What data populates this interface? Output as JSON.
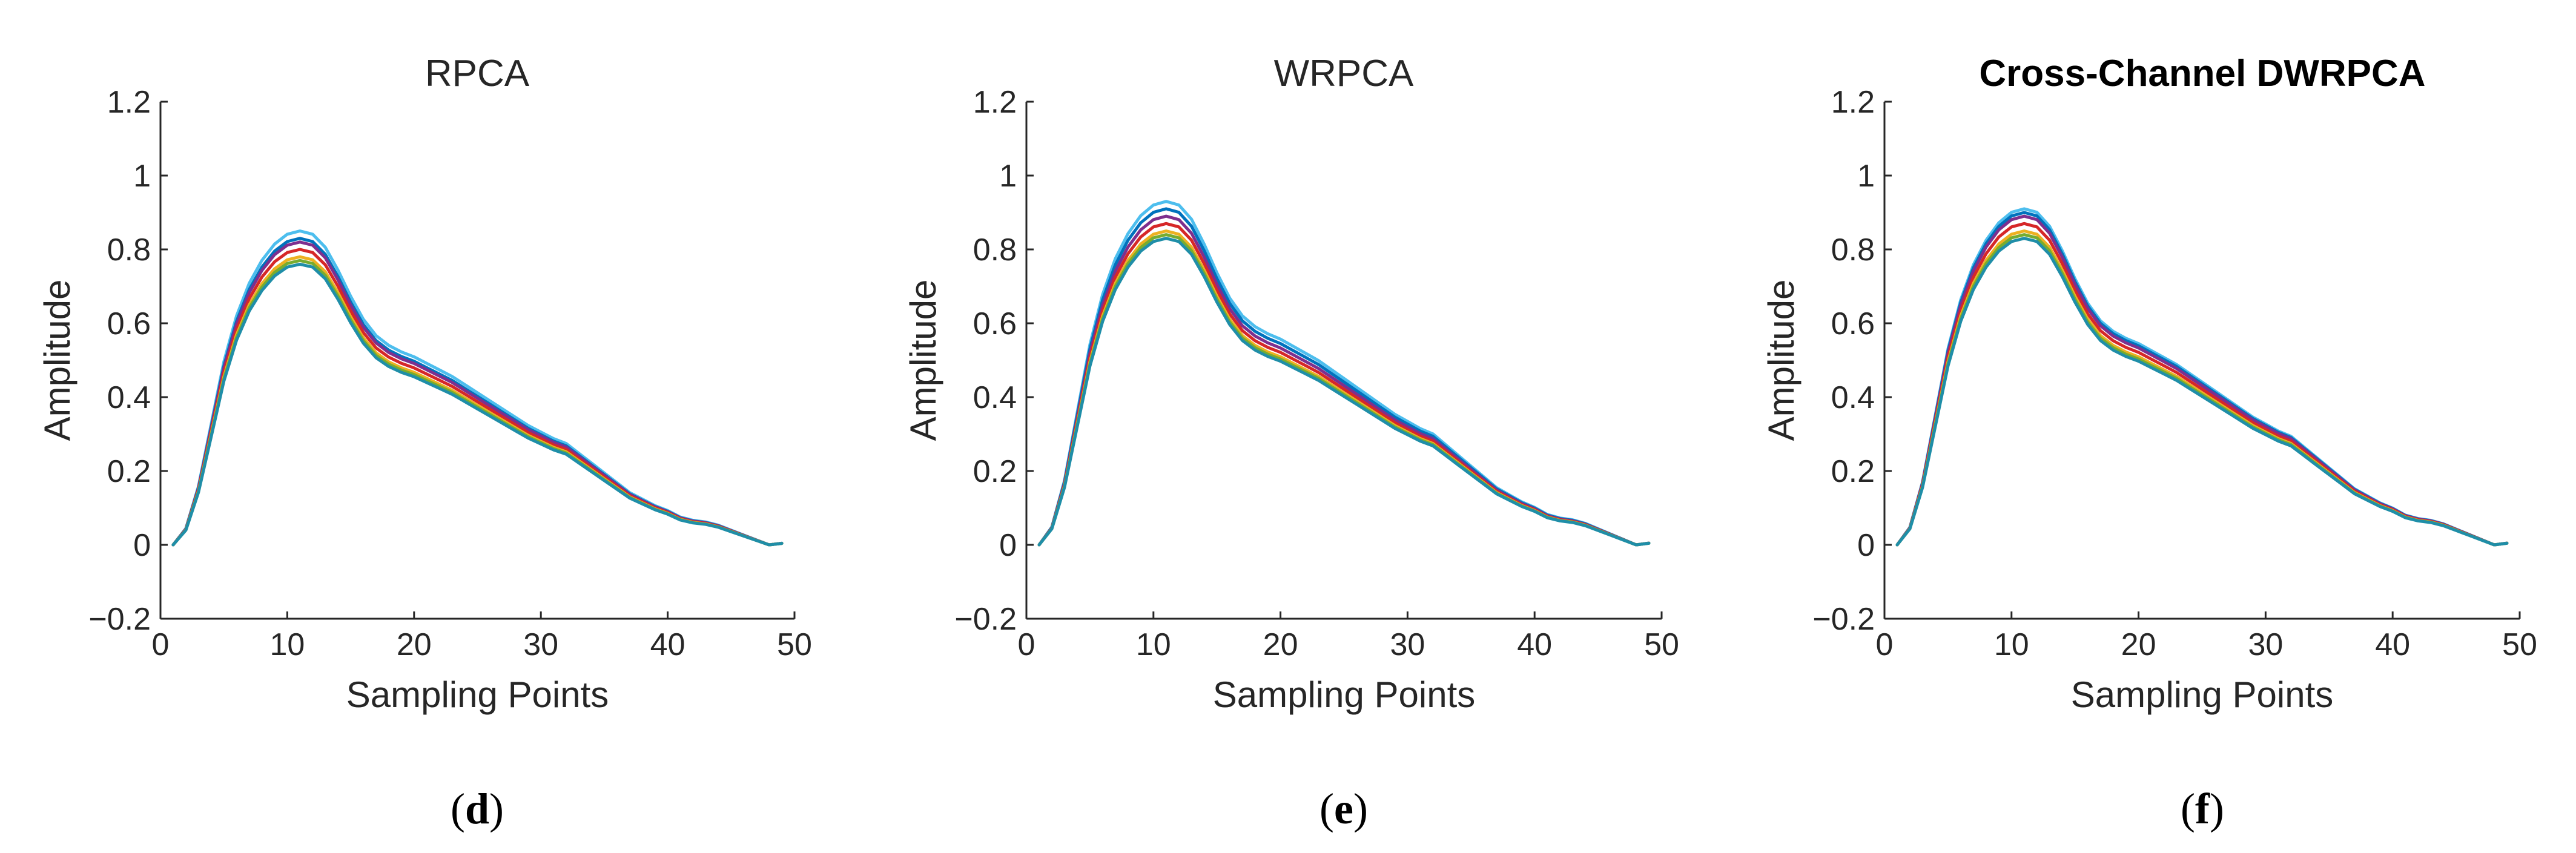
{
  "chart_data": [
    {
      "type": "line",
      "title": "RPCA",
      "title_bold": false,
      "caption": "d",
      "xlabel": "Sampling Points",
      "ylabel": "Amplitude",
      "xlim": [
        0,
        50
      ],
      "ylim": [
        -0.2,
        1.2
      ],
      "xticks": [
        0,
        10,
        20,
        30,
        40,
        50
      ],
      "yticks": [
        -0.2,
        0,
        0.2,
        0.4,
        0.6,
        0.8,
        1,
        1.2
      ],
      "x": [
        1,
        2,
        3,
        4,
        5,
        6,
        7,
        8,
        9,
        10,
        11,
        12,
        13,
        14,
        15,
        16,
        17,
        18,
        19,
        20,
        21,
        22,
        23,
        24,
        25,
        26,
        27,
        28,
        29,
        30,
        31,
        32,
        33,
        34,
        35,
        36,
        37,
        38,
        39,
        40,
        41,
        42,
        43,
        44,
        45,
        46,
        47,
        48,
        49
      ],
      "series": [
        {
          "name": "light-blue",
          "color": "#4dbeee",
          "peak": 0.85
        },
        {
          "name": "blue",
          "color": "#0072bd",
          "peak": 0.83
        },
        {
          "name": "purple",
          "color": "#7e2f8e",
          "peak": 0.82
        },
        {
          "name": "red",
          "color": "#d62728",
          "peak": 0.8
        },
        {
          "name": "yellow",
          "color": "#edb120",
          "peak": 0.78
        },
        {
          "name": "green",
          "color": "#77ac30",
          "peak": 0.77
        },
        {
          "name": "teal",
          "color": "#1f8ea8",
          "peak": 0.76
        }
      ]
    },
    {
      "type": "line",
      "title": "WRPCA",
      "title_bold": false,
      "caption": "e",
      "xlabel": "Sampling Points",
      "ylabel": "Amplitude",
      "xlim": [
        0,
        50
      ],
      "ylim": [
        -0.2,
        1.2
      ],
      "xticks": [
        0,
        10,
        20,
        30,
        40,
        50
      ],
      "yticks": [
        -0.2,
        0,
        0.2,
        0.4,
        0.6,
        0.8,
        1,
        1.2
      ],
      "x": [
        1,
        2,
        3,
        4,
        5,
        6,
        7,
        8,
        9,
        10,
        11,
        12,
        13,
        14,
        15,
        16,
        17,
        18,
        19,
        20,
        21,
        22,
        23,
        24,
        25,
        26,
        27,
        28,
        29,
        30,
        31,
        32,
        33,
        34,
        35,
        36,
        37,
        38,
        39,
        40,
        41,
        42,
        43,
        44,
        45,
        46,
        47,
        48,
        49
      ],
      "series": [
        {
          "name": "light-blue",
          "color": "#4dbeee",
          "peak": 0.93
        },
        {
          "name": "blue",
          "color": "#0072bd",
          "peak": 0.91
        },
        {
          "name": "purple",
          "color": "#7e2f8e",
          "peak": 0.89
        },
        {
          "name": "red",
          "color": "#d62728",
          "peak": 0.87
        },
        {
          "name": "yellow",
          "color": "#edb120",
          "peak": 0.85
        },
        {
          "name": "green",
          "color": "#77ac30",
          "peak": 0.84
        },
        {
          "name": "teal",
          "color": "#1f8ea8",
          "peak": 0.83
        }
      ]
    },
    {
      "type": "line",
      "title": "Cross-Channel DWRPCA",
      "title_bold": true,
      "caption": "f",
      "xlabel": "Sampling Points",
      "ylabel": "Amplitude",
      "xlim": [
        0,
        50
      ],
      "ylim": [
        -0.2,
        1.2
      ],
      "xticks": [
        0,
        10,
        20,
        30,
        40,
        50
      ],
      "yticks": [
        -0.2,
        0,
        0.2,
        0.4,
        0.6,
        0.8,
        1,
        1.2
      ],
      "x": [
        1,
        2,
        3,
        4,
        5,
        6,
        7,
        8,
        9,
        10,
        11,
        12,
        13,
        14,
        15,
        16,
        17,
        18,
        19,
        20,
        21,
        22,
        23,
        24,
        25,
        26,
        27,
        28,
        29,
        30,
        31,
        32,
        33,
        34,
        35,
        36,
        37,
        38,
        39,
        40,
        41,
        42,
        43,
        44,
        45,
        46,
        47,
        48,
        49
      ],
      "series": [
        {
          "name": "light-blue",
          "color": "#4dbeee",
          "peak": 0.91
        },
        {
          "name": "blue",
          "color": "#0072bd",
          "peak": 0.9
        },
        {
          "name": "purple",
          "color": "#7e2f8e",
          "peak": 0.89
        },
        {
          "name": "red",
          "color": "#d62728",
          "peak": 0.87
        },
        {
          "name": "yellow",
          "color": "#edb120",
          "peak": 0.85
        },
        {
          "name": "green",
          "color": "#77ac30",
          "peak": 0.84
        },
        {
          "name": "teal",
          "color": "#1f8ea8",
          "peak": 0.83
        }
      ]
    }
  ],
  "base_shape": [
    0.0,
    0.05,
    0.18,
    0.37,
    0.56,
    0.7,
    0.8,
    0.87,
    0.92,
    0.95,
    0.96,
    0.95,
    0.91,
    0.84,
    0.76,
    0.69,
    0.64,
    0.61,
    0.59,
    0.575,
    0.555,
    0.535,
    0.515,
    0.49,
    0.465,
    0.44,
    0.415,
    0.39,
    0.365,
    0.345,
    0.325,
    0.31,
    0.28,
    0.25,
    0.22,
    0.19,
    0.16,
    0.14,
    0.12,
    0.105,
    0.085,
    0.075,
    0.07,
    0.06,
    0.045,
    0.03,
    0.015,
    0.0,
    0.005
  ]
}
